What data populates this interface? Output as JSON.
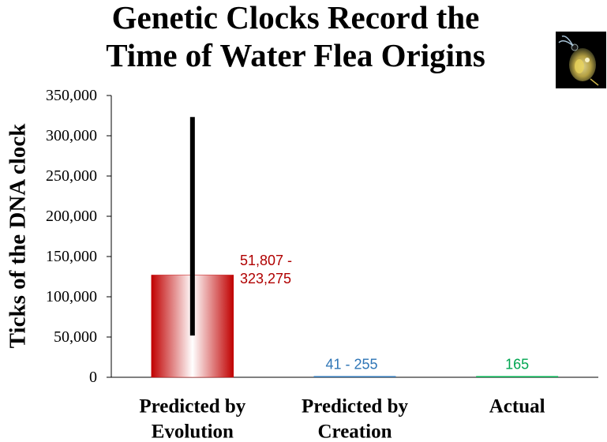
{
  "chart_data": {
    "type": "bar",
    "title_lines": [
      "Genetic Clocks Record the",
      "Time of Water Flea Origins"
    ],
    "ylabel": "Ticks of the DNA clock",
    "xlabel": "",
    "ylim": [
      0,
      350000
    ],
    "yticks": [
      0,
      50000,
      100000,
      150000,
      200000,
      250000,
      300000,
      350000
    ],
    "ytick_labels": [
      "0",
      "50,000",
      "100,000",
      "150,000",
      "200,000",
      "250,000",
      "300,000",
      "350,000"
    ],
    "grid": false,
    "categories": [
      {
        "line1": "Predicted by",
        "line2": "Evolution"
      },
      {
        "line1": "Predicted by",
        "line2": "Creation"
      },
      {
        "line1": "Actual",
        "line2": ""
      }
    ],
    "values": [
      127000,
      148,
      165
    ],
    "error_ranges": [
      [
        51807,
        323275
      ],
      null,
      null
    ],
    "data_labels": [
      {
        "line1": "51,807 -",
        "line2": "323,275"
      },
      {
        "line1": "41 - 255",
        "line2": ""
      },
      {
        "line1": "165",
        "line2": ""
      }
    ],
    "colors": {
      "evolution_bar_dark": "#c00000",
      "evolution_bar_light": "#ffffff",
      "creation_bar": "#2e75b6",
      "actual_bar": "#00b050",
      "evolution_label": "#b00000",
      "creation_label": "#2e75b6",
      "actual_label": "#00a651",
      "error_bar": "#000000",
      "axis": "#000000"
    }
  },
  "image": {
    "icon": "water-flea-photo"
  }
}
